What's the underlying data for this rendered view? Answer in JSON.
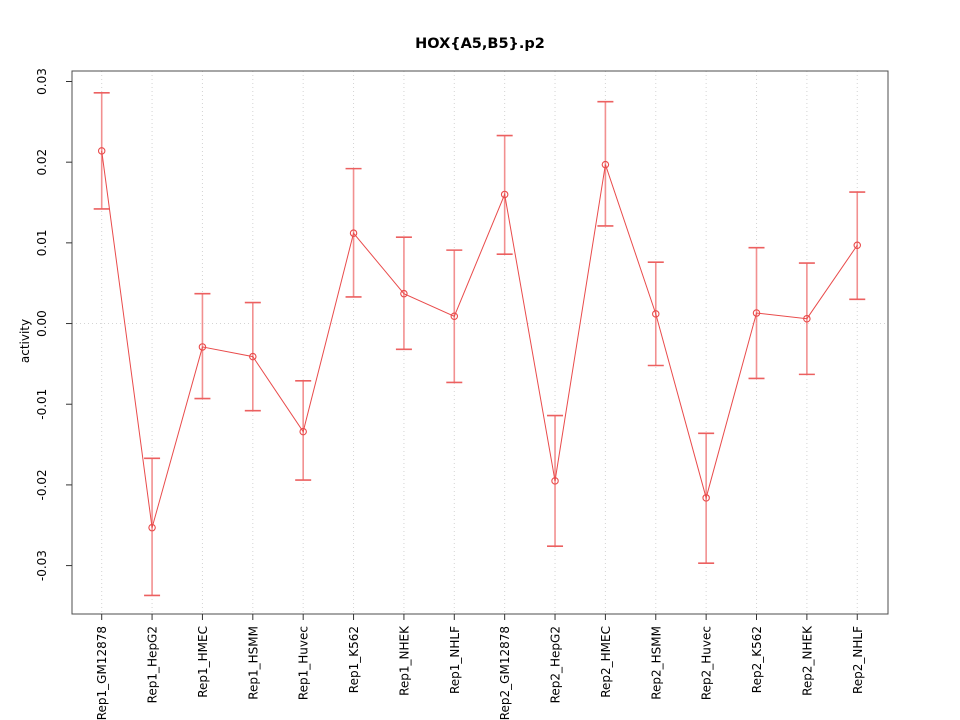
{
  "figure": {
    "background": "#ffffff"
  },
  "chart_data": {
    "type": "line",
    "title": "HOX{A5,B5}.p2",
    "ylabel": "activity",
    "xlabel": "",
    "categories": [
      "Rep1_GM12878",
      "Rep1_HepG2",
      "Rep1_HMEC",
      "Rep1_HSMM",
      "Rep1_Huvec",
      "Rep1_K562",
      "Rep1_NHEK",
      "Rep1_NHLF",
      "Rep2_GM12878",
      "Rep2_HepG2",
      "Rep2_HMEC",
      "Rep2_HSMM",
      "Rep2_Huvec",
      "Rep2_K562",
      "Rep2_NHEK",
      "Rep2_NHLF"
    ],
    "series": [
      {
        "name": "activity",
        "values": [
          0.0214,
          -0.0253,
          -0.0029,
          -0.0041,
          -0.0134,
          0.0112,
          0.0037,
          0.0009,
          0.016,
          -0.0195,
          0.0197,
          0.0012,
          -0.0216,
          0.0013,
          0.0006,
          0.0097
        ],
        "error_low": [
          0.0142,
          -0.0337,
          -0.0093,
          -0.0108,
          -0.0194,
          0.0033,
          -0.0032,
          -0.0073,
          0.0086,
          -0.0276,
          0.0121,
          -0.0052,
          -0.0297,
          -0.0068,
          -0.0063,
          0.003
        ],
        "error_high": [
          0.0286,
          -0.0167,
          0.0037,
          0.0026,
          -0.0071,
          0.0192,
          0.0107,
          0.0091,
          0.0233,
          -0.0114,
          0.0275,
          0.0076,
          -0.0136,
          0.0094,
          0.0075,
          0.0163
        ]
      }
    ],
    "ylim": [
      -0.036,
      0.0313
    ],
    "yticks": [
      -0.03,
      -0.02,
      -0.01,
      0,
      0.01,
      0.02,
      0.03
    ],
    "ytick_labels": [
      "-0.03",
      "-0.02",
      "-0.01",
      "0.00",
      "0.01",
      "0.02",
      "0.03"
    ],
    "grid": {
      "vertical_per_category": true,
      "horizontal_zero_line": true,
      "style": "dotted"
    },
    "legend": "none",
    "marker": "open-circle",
    "colors": {
      "line": "#e94b4b",
      "point": "#e94b4b",
      "error_stem": "#f29090",
      "error_cap": "#ec6060",
      "grid": "#d4d4d4",
      "box": "#4d4d4d",
      "tick": "#333333",
      "text": "#000000"
    }
  }
}
